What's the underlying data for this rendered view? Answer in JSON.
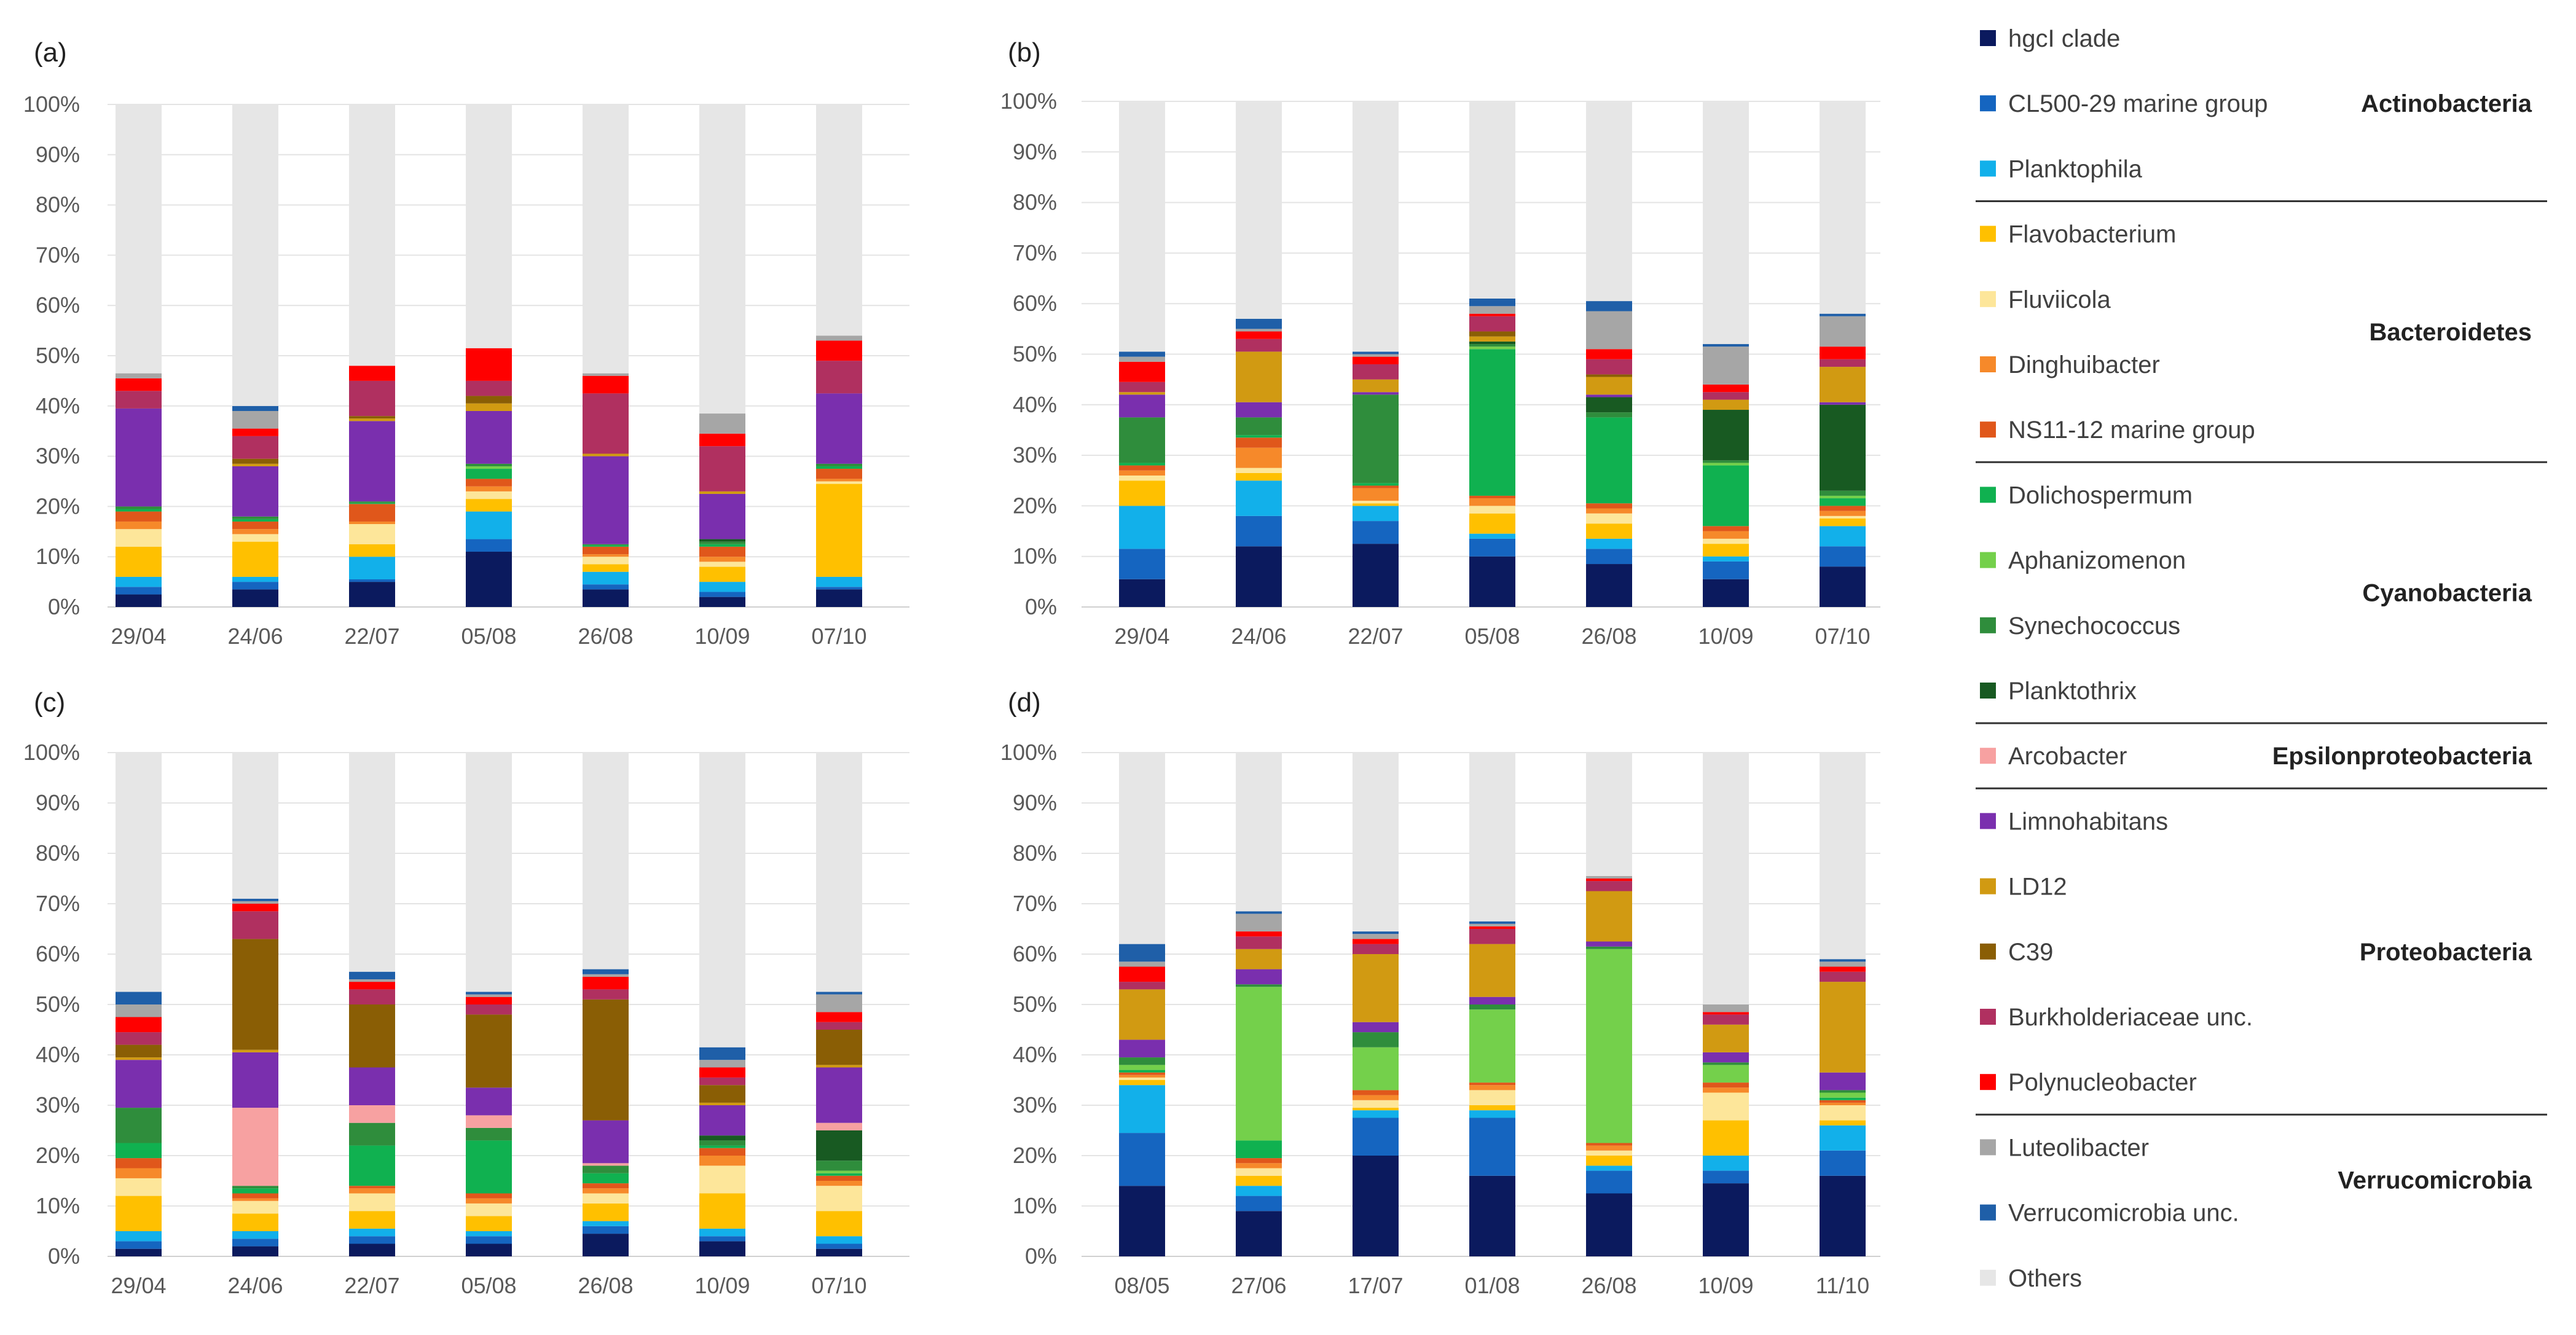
{
  "chart_data": {
    "type": "bar",
    "stacked": true,
    "ylabel": "",
    "ylim": [
      0,
      100
    ],
    "yticks": [
      "0%",
      "10%",
      "20%",
      "30%",
      "40%",
      "50%",
      "60%",
      "70%",
      "80%",
      "90%",
      "100%"
    ],
    "taxa": [
      {
        "name": "hgcI clade",
        "color": "#0b1a5e"
      },
      {
        "name": "CL500-29 marine group",
        "color": "#1565c0"
      },
      {
        "name": "Planktophila",
        "color": "#12b0ea"
      },
      {
        "name": "Flavobacterium",
        "color": "#ffc000"
      },
      {
        "name": "Fluviicola",
        "color": "#fde69a"
      },
      {
        "name": "Dinghuibacter",
        "color": "#f6892a"
      },
      {
        "name": "NS11-12 marine group",
        "color": "#e0571b"
      },
      {
        "name": "Dolichospermum",
        "color": "#10b150"
      },
      {
        "name": "Aphanizomenon",
        "color": "#74d04b"
      },
      {
        "name": "Synechococcus",
        "color": "#2f8d3c"
      },
      {
        "name": "Planktothrix",
        "color": "#185a22"
      },
      {
        "name": "Arcobacter",
        "color": "#f7a1a1"
      },
      {
        "name": "Limnohabitans",
        "color": "#7a2fae"
      },
      {
        "name": "LD12",
        "color": "#d19a12"
      },
      {
        "name": "C39",
        "color": "#8a5e05"
      },
      {
        "name": "Burkholderiaceae unc.",
        "color": "#b03060"
      },
      {
        "name": "Polynucleobacter",
        "color": "#ff0000"
      },
      {
        "name": "Luteolibacter",
        "color": "#a6a6a6"
      },
      {
        "name": "Verrucomicrobia unc.",
        "color": "#1f5fa8"
      },
      {
        "name": "Others",
        "color": "#e6e6e6"
      }
    ],
    "groups": [
      {
        "name": "Actinobacteria",
        "first": 0,
        "last": 2
      },
      {
        "name": "Bacteroidetes",
        "first": 3,
        "last": 6
      },
      {
        "name": "Cyanobacteria",
        "first": 7,
        "last": 10
      },
      {
        "name": "Epsilonproteobacteria",
        "first": 11,
        "last": 11
      },
      {
        "name": "Proteobacteria",
        "first": 12,
        "last": 16
      },
      {
        "name": "Verrucomicrobia",
        "first": 17,
        "last": 18
      }
    ],
    "panels": [
      {
        "label": "(a)",
        "categories": [
          "29/04",
          "24/06",
          "22/07",
          "05/08",
          "26/08",
          "10/09",
          "07/10"
        ],
        "series_values": [
          [
            2.5,
            3.5,
            5,
            11,
            3.5,
            2,
            3.5
          ],
          [
            1.5,
            1.5,
            0.5,
            2.5,
            1,
            1,
            0.5
          ],
          [
            2,
            1,
            4.5,
            5.5,
            2.5,
            2,
            2
          ],
          [
            6,
            7,
            2.5,
            2.5,
            1.5,
            3,
            18.5
          ],
          [
            3.5,
            1.5,
            4,
            1.5,
            1.5,
            1,
            0.5
          ],
          [
            1.5,
            1,
            0.5,
            1,
            0.5,
            1,
            0.5
          ],
          [
            2,
            1.5,
            3.5,
            1.5,
            1.5,
            2,
            2
          ],
          [
            0.5,
            0.5,
            0.2,
            2,
            0.3,
            0.5,
            0.5
          ],
          [
            0,
            0,
            0,
            0.5,
            0,
            0,
            0
          ],
          [
            0.5,
            0.5,
            0.3,
            0.5,
            0.2,
            0.5,
            0.5
          ],
          [
            0,
            0,
            0,
            0,
            0,
            0.5,
            0
          ],
          [
            0,
            0,
            0,
            0,
            0,
            0,
            0
          ],
          [
            19.5,
            10,
            16,
            10.5,
            17.5,
            9,
            14
          ],
          [
            0,
            0.5,
            0.5,
            1.5,
            0.5,
            0.5,
            0
          ],
          [
            0,
            1,
            0.5,
            1.5,
            0,
            0,
            0
          ],
          [
            3.5,
            4.5,
            7,
            3,
            12,
            9,
            6.5
          ],
          [
            2.5,
            1.5,
            3,
            6.5,
            3.5,
            2.5,
            4
          ],
          [
            1,
            3.5,
            0,
            0,
            0.5,
            4,
            1
          ],
          [
            0,
            1,
            0,
            0,
            0,
            0,
            0
          ]
        ]
      },
      {
        "label": "(b)",
        "categories": [
          "29/04",
          "24/06",
          "22/07",
          "05/08",
          "26/08",
          "10/09",
          "07/10"
        ],
        "series_values": [
          [
            5.5,
            12,
            12.5,
            10,
            8.5,
            5.5,
            8
          ],
          [
            6,
            6,
            4.5,
            3.5,
            3,
            3.5,
            4
          ],
          [
            8.5,
            7,
            3,
            1,
            2,
            1,
            4
          ],
          [
            5,
            1.5,
            0.5,
            4,
            3,
            2.5,
            1.5
          ],
          [
            1,
            1,
            0.5,
            1.5,
            2,
            1,
            0.5
          ],
          [
            1,
            4,
            2.5,
            1.5,
            1,
            1.5,
            1
          ],
          [
            1,
            2,
            0.5,
            0.5,
            1,
            1,
            1
          ],
          [
            0.5,
            0.5,
            0.5,
            29,
            17,
            12,
            1.5
          ],
          [
            0,
            0,
            0,
            0.5,
            0,
            0.5,
            0.5
          ],
          [
            9,
            3.5,
            17.5,
            0.5,
            1,
            0.5,
            1
          ],
          [
            0,
            0,
            0,
            0.5,
            3,
            10,
            17
          ],
          [
            0,
            0,
            0,
            0,
            0,
            0,
            0
          ],
          [
            4.5,
            3,
            0.5,
            0,
            0.5,
            0,
            0.5
          ],
          [
            0.5,
            10,
            2.5,
            1,
            3.5,
            2,
            7
          ],
          [
            0,
            0,
            0,
            1,
            0.5,
            0,
            0
          ],
          [
            2,
            2.5,
            3,
            3,
            3,
            1.5,
            1.5
          ],
          [
            4,
            1.5,
            1.5,
            0.5,
            2,
            1.5,
            2.5
          ],
          [
            1,
            0.5,
            0.5,
            1.5,
            7.5,
            7.5,
            6
          ],
          [
            1,
            2,
            0.5,
            1.5,
            2,
            0.5,
            0.5
          ]
        ]
      },
      {
        "label": "(c)",
        "categories": [
          "29/04",
          "24/06",
          "22/07",
          "05/08",
          "26/08",
          "10/09",
          "07/10"
        ],
        "series_values": [
          [
            1.5,
            2,
            2.5,
            2.5,
            4.5,
            3,
            1.5
          ],
          [
            1.5,
            1.5,
            1.5,
            1.5,
            1.5,
            1,
            1
          ],
          [
            2,
            1.5,
            1.5,
            1,
            1,
            1.5,
            1.5
          ],
          [
            7,
            3.5,
            3.5,
            3,
            3.5,
            7,
            5
          ],
          [
            3.5,
            2.5,
            3.5,
            2.5,
            2,
            5.5,
            5
          ],
          [
            2,
            0.5,
            1,
            1,
            1,
            2,
            1
          ],
          [
            2,
            1,
            0.5,
            1,
            1,
            1.5,
            1
          ],
          [
            3,
            1,
            8,
            10.5,
            2,
            0.5,
            0.5
          ],
          [
            0,
            0,
            0,
            0,
            0,
            0,
            0.5
          ],
          [
            7,
            0.5,
            4.5,
            2.5,
            1.5,
            1,
            2
          ],
          [
            0,
            0,
            0,
            0,
            0,
            1,
            6
          ],
          [
            0,
            15.5,
            3.5,
            2.5,
            0.5,
            0,
            1.5
          ],
          [
            9.5,
            11,
            7.5,
            5.5,
            8.5,
            6,
            11
          ],
          [
            0.5,
            0.5,
            0,
            0,
            0,
            0.5,
            0.5
          ],
          [
            2.5,
            22,
            12.5,
            14.5,
            24,
            3.5,
            7
          ],
          [
            2.5,
            5.5,
            3,
            2,
            2,
            1.5,
            1.5
          ],
          [
            3,
            1.5,
            1.5,
            1.5,
            2.5,
            2,
            2
          ],
          [
            2.5,
            0.5,
            0.5,
            0.5,
            0.5,
            1.5,
            3.5
          ],
          [
            2.5,
            0.5,
            1.5,
            0.5,
            1,
            2.5,
            0.5
          ]
        ]
      },
      {
        "label": "(d)",
        "categories": [
          "08/05",
          "27/06",
          "17/07",
          "01/08",
          "26/08",
          "10/09",
          "11/10"
        ],
        "series_values": [
          [
            14,
            9,
            20,
            16,
            12.5,
            14.5,
            16
          ],
          [
            10.5,
            3,
            7.5,
            11.5,
            4.5,
            2.5,
            5
          ],
          [
            9.5,
            2,
            1.5,
            1.5,
            1,
            3,
            5
          ],
          [
            1,
            2,
            0.5,
            1,
            2,
            7,
            1
          ],
          [
            0.5,
            1.5,
            1.5,
            3,
            1,
            5.5,
            3
          ],
          [
            0.5,
            1,
            1,
            1,
            1,
            1,
            0.5
          ],
          [
            0.5,
            1,
            1,
            0.5,
            0.5,
            1,
            0.5
          ],
          [
            0.5,
            3.5,
            0,
            0,
            0,
            0,
            0.5
          ],
          [
            1,
            30.5,
            8.5,
            14.5,
            38.5,
            3.5,
            1
          ],
          [
            1.5,
            0.5,
            3,
            1,
            0.5,
            0.5,
            0.5
          ],
          [
            0,
            0,
            0,
            0,
            0,
            0,
            0
          ],
          [
            0,
            0,
            0,
            0,
            0,
            0,
            0
          ],
          [
            3.5,
            3,
            2,
            1.5,
            1,
            2,
            3.5
          ],
          [
            10,
            4,
            13.5,
            10.5,
            10,
            5.5,
            18
          ],
          [
            0,
            0,
            0,
            0,
            0,
            0,
            0
          ],
          [
            1.5,
            2.5,
            2,
            3,
            2,
            2,
            2
          ],
          [
            3,
            1,
            1,
            0.5,
            0.5,
            0.5,
            1
          ],
          [
            1,
            3.5,
            1,
            0.5,
            0.5,
            1.5,
            1
          ],
          [
            3.5,
            0.5,
            0.5,
            0.5,
            0,
            0,
            0.5
          ]
        ]
      }
    ]
  }
}
